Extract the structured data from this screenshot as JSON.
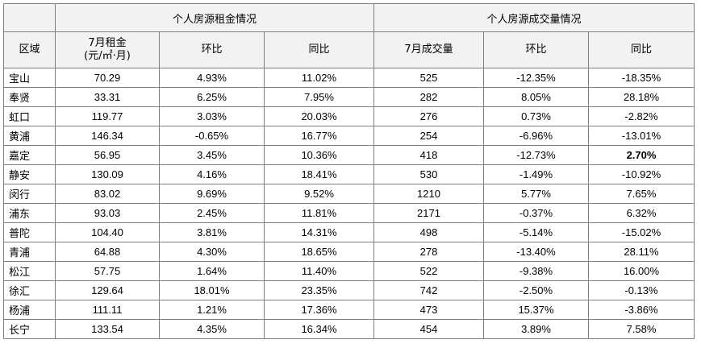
{
  "header": {
    "group_rent": "个人房源租金情况",
    "group_volume": "个人房源成交量情况",
    "col_area": "区域",
    "col_rent_line1": "7月租金",
    "col_rent_line2": "(元/㎡·月)",
    "col_rent_mom": "环比",
    "col_rent_yoy": "同比",
    "col_volume": "7月成交量",
    "col_vol_mom": "环比",
    "col_vol_yoy": "同比"
  },
  "rows": [
    {
      "area": "宝山",
      "rent": "70.29",
      "rent_mom": "4.93%",
      "rent_yoy": "11.02%",
      "volume": "525",
      "vol_mom": "-12.35%",
      "vol_yoy": "-18.35%"
    },
    {
      "area": "奉贤",
      "rent": "33.31",
      "rent_mom": "6.25%",
      "rent_yoy": "7.95%",
      "volume": "282",
      "vol_mom": "8.05%",
      "vol_yoy": "28.18%"
    },
    {
      "area": "虹口",
      "rent": "119.77",
      "rent_mom": "3.03%",
      "rent_yoy": "20.03%",
      "volume": "276",
      "vol_mom": "0.73%",
      "vol_yoy": "-2.82%"
    },
    {
      "area": "黄浦",
      "rent": "146.34",
      "rent_mom": "-0.65%",
      "rent_yoy": "16.77%",
      "volume": "254",
      "vol_mom": "-6.96%",
      "vol_yoy": "-13.01%"
    },
    {
      "area": "嘉定",
      "rent": "56.95",
      "rent_mom": "3.45%",
      "rent_yoy": "10.36%",
      "volume": "418",
      "vol_mom": "-12.73%",
      "vol_yoy": "2.70%"
    },
    {
      "area": "静安",
      "rent": "130.09",
      "rent_mom": "4.16%",
      "rent_yoy": "18.41%",
      "volume": "530",
      "vol_mom": "-1.49%",
      "vol_yoy": "-10.92%"
    },
    {
      "area": "闵行",
      "rent": "83.02",
      "rent_mom": "9.69%",
      "rent_yoy": "9.52%",
      "volume": "1210",
      "vol_mom": "5.77%",
      "vol_yoy": "7.65%"
    },
    {
      "area": "浦东",
      "rent": "93.03",
      "rent_mom": "2.45%",
      "rent_yoy": "11.81%",
      "volume": "2171",
      "vol_mom": "-0.37%",
      "vol_yoy": "6.32%"
    },
    {
      "area": "普陀",
      "rent": "104.40",
      "rent_mom": "3.81%",
      "rent_yoy": "14.31%",
      "volume": "498",
      "vol_mom": "-5.14%",
      "vol_yoy": "-15.02%"
    },
    {
      "area": "青浦",
      "rent": "64.88",
      "rent_mom": "4.30%",
      "rent_yoy": "18.65%",
      "volume": "278",
      "vol_mom": "-13.40%",
      "vol_yoy": "28.11%"
    },
    {
      "area": "松江",
      "rent": "57.75",
      "rent_mom": "1.64%",
      "rent_yoy": "11.40%",
      "volume": "522",
      "vol_mom": "-9.38%",
      "vol_yoy": "16.00%"
    },
    {
      "area": "徐汇",
      "rent": "129.64",
      "rent_mom": "18.01%",
      "rent_yoy": "23.35%",
      "volume": "742",
      "vol_mom": "-2.50%",
      "vol_yoy": "-0.13%"
    },
    {
      "area": "杨浦",
      "rent": "111.11",
      "rent_mom": "1.21%",
      "rent_yoy": "17.36%",
      "volume": "473",
      "vol_mom": "15.37%",
      "vol_yoy": "-3.86%"
    },
    {
      "area": "长宁",
      "rent": "133.54",
      "rent_mom": "4.35%",
      "rent_yoy": "16.34%",
      "volume": "454",
      "vol_mom": "3.89%",
      "vol_yoy": "7.58%"
    }
  ],
  "colors": {
    "positive": "#c0504d",
    "negative": "#00a650",
    "emphasis": "#c00000",
    "header_bg": "#f2f2f2",
    "border": "#7f7f7f"
  }
}
